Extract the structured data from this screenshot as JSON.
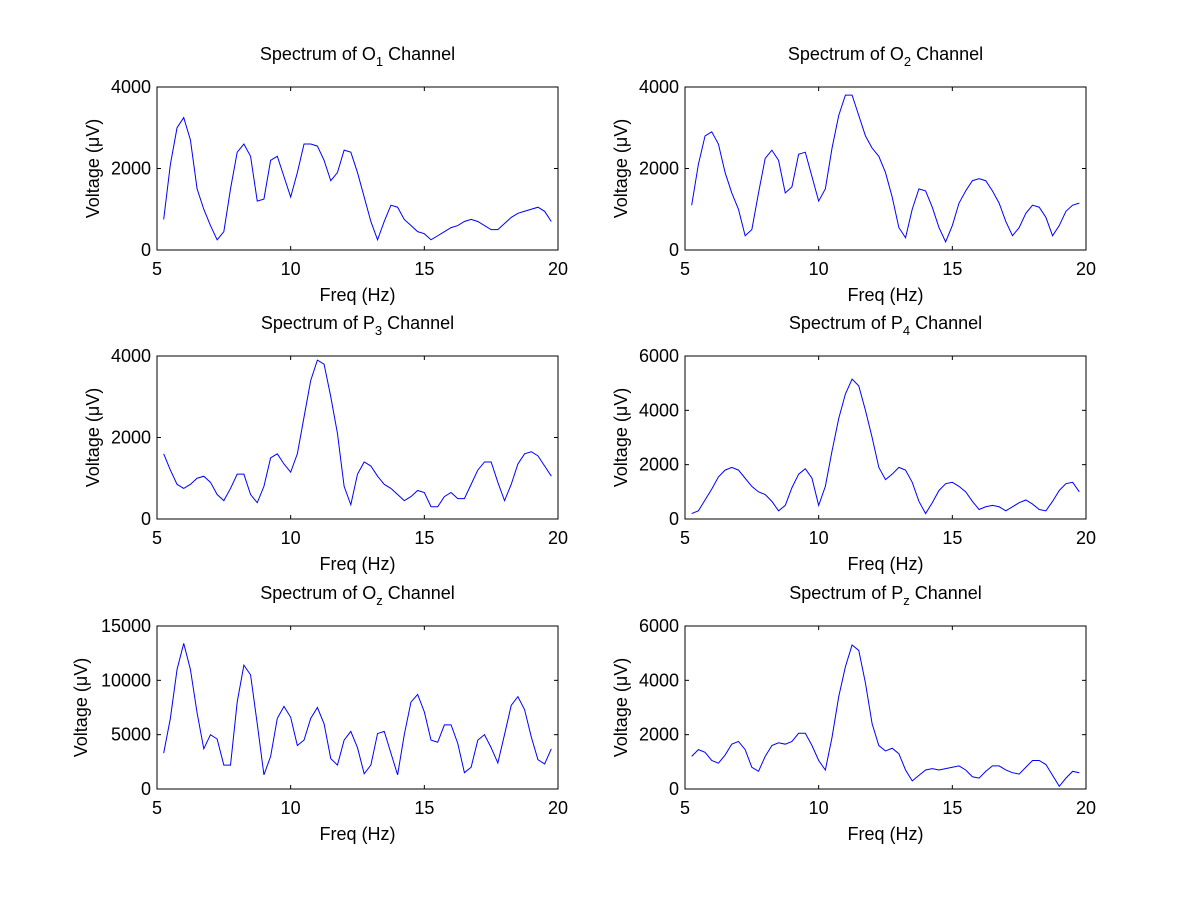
{
  "chart_data": [
    {
      "type": "line",
      "title": {
        "text": "Spectrum of",
        "channel": "O",
        "subscript": "1",
        "suffix": "Channel"
      },
      "xlabel": "Freq (Hz)",
      "ylabel": "Voltage (μV)",
      "color": "#0000ff",
      "xlim": [
        5,
        20
      ],
      "xticks": [
        5,
        10,
        15,
        20
      ],
      "ylim": [
        0,
        4000
      ],
      "yticks": [
        0,
        2000,
        4000
      ],
      "x": [
        5.25,
        5.5,
        5.75,
        6,
        6.25,
        6.5,
        6.75,
        7,
        7.25,
        7.5,
        7.75,
        8,
        8.25,
        8.5,
        8.75,
        9,
        9.25,
        9.5,
        9.75,
        10,
        10.25,
        10.5,
        10.75,
        11,
        11.25,
        11.5,
        11.75,
        12,
        12.25,
        12.5,
        12.75,
        13,
        13.25,
        13.5,
        13.75,
        14,
        14.25,
        14.5,
        14.75,
        15,
        15.25,
        15.5,
        15.75,
        16,
        16.25,
        16.5,
        16.75,
        17,
        17.25,
        17.5,
        17.75,
        18,
        18.25,
        18.5,
        18.75,
        19,
        19.25,
        19.5,
        19.75
      ],
      "values": [
        750,
        2100,
        3000,
        3250,
        2700,
        1500,
        1000,
        600,
        250,
        450,
        1500,
        2400,
        2600,
        2300,
        1200,
        1250,
        2200,
        2300,
        1800,
        1300,
        1900,
        2600,
        2600,
        2550,
        2200,
        1700,
        1900,
        2450,
        2400,
        1900,
        1300,
        700,
        250,
        700,
        1100,
        1050,
        750,
        600,
        450,
        400,
        250,
        350,
        450,
        550,
        600,
        700,
        750,
        700,
        600,
        500,
        500,
        650,
        800,
        900,
        950,
        1000,
        1050,
        950,
        700
      ]
    },
    {
      "type": "line",
      "title": {
        "text": "Spectrum of",
        "channel": "O",
        "subscript": "2",
        "suffix": "Channel"
      },
      "xlabel": "Freq (Hz)",
      "ylabel": "Voltage (μV)",
      "color": "#0000ff",
      "xlim": [
        5,
        20
      ],
      "xticks": [
        5,
        10,
        15,
        20
      ],
      "ylim": [
        0,
        4000
      ],
      "yticks": [
        0,
        2000,
        4000
      ],
      "x": [
        5.25,
        5.5,
        5.75,
        6,
        6.25,
        6.5,
        6.75,
        7,
        7.25,
        7.5,
        7.75,
        8,
        8.25,
        8.5,
        8.75,
        9,
        9.25,
        9.5,
        9.75,
        10,
        10.25,
        10.5,
        10.75,
        11,
        11.25,
        11.5,
        11.75,
        12,
        12.25,
        12.5,
        12.75,
        13,
        13.25,
        13.5,
        13.75,
        14,
        14.25,
        14.5,
        14.75,
        15,
        15.25,
        15.5,
        15.75,
        16,
        16.25,
        16.5,
        16.75,
        17,
        17.25,
        17.5,
        17.75,
        18,
        18.25,
        18.5,
        18.75,
        19,
        19.25,
        19.5,
        19.75
      ],
      "values": [
        1100,
        2100,
        2800,
        2900,
        2600,
        1900,
        1400,
        1000,
        350,
        500,
        1400,
        2250,
        2450,
        2200,
        1400,
        1550,
        2350,
        2400,
        1800,
        1200,
        1500,
        2500,
        3300,
        3800,
        3800,
        3300,
        2800,
        2500,
        2300,
        1900,
        1300,
        550,
        300,
        1000,
        1500,
        1450,
        1050,
        550,
        200,
        600,
        1150,
        1450,
        1700,
        1750,
        1700,
        1450,
        1150,
        700,
        350,
        550,
        900,
        1100,
        1050,
        800,
        350,
        600,
        950,
        1100,
        1150
      ]
    },
    {
      "type": "line",
      "title": {
        "text": "Spectrum of",
        "channel": "P",
        "subscript": "3",
        "suffix": "Channel"
      },
      "xlabel": "Freq (Hz)",
      "ylabel": "Voltage (μV)",
      "color": "#0000ff",
      "xlim": [
        5,
        20
      ],
      "xticks": [
        5,
        10,
        15,
        20
      ],
      "ylim": [
        0,
        4000
      ],
      "yticks": [
        0,
        2000,
        4000
      ],
      "x": [
        5.25,
        5.5,
        5.75,
        6,
        6.25,
        6.5,
        6.75,
        7,
        7.25,
        7.5,
        7.75,
        8,
        8.25,
        8.5,
        8.75,
        9,
        9.25,
        9.5,
        9.75,
        10,
        10.25,
        10.5,
        10.75,
        11,
        11.25,
        11.5,
        11.75,
        12,
        12.25,
        12.5,
        12.75,
        13,
        13.25,
        13.5,
        13.75,
        14,
        14.25,
        14.5,
        14.75,
        15,
        15.25,
        15.5,
        15.75,
        16,
        16.25,
        16.5,
        16.75,
        17,
        17.25,
        17.5,
        17.75,
        18,
        18.25,
        18.5,
        18.75,
        19,
        19.25,
        19.5,
        19.75
      ],
      "values": [
        1600,
        1200,
        850,
        750,
        850,
        1000,
        1050,
        900,
        600,
        450,
        750,
        1100,
        1100,
        600,
        400,
        800,
        1500,
        1600,
        1350,
        1150,
        1600,
        2500,
        3400,
        3900,
        3800,
        3000,
        2100,
        800,
        350,
        1100,
        1400,
        1300,
        1050,
        850,
        750,
        600,
        450,
        550,
        700,
        650,
        300,
        300,
        550,
        650,
        500,
        500,
        850,
        1200,
        1400,
        1400,
        900,
        450,
        850,
        1350,
        1600,
        1650,
        1550,
        1300,
        1050
      ]
    },
    {
      "type": "line",
      "title": {
        "text": "Spectrum of",
        "channel": "P",
        "subscript": "4",
        "suffix": "Channel"
      },
      "xlabel": "Freq (Hz)",
      "ylabel": "Voltage (μV)",
      "color": "#0000ff",
      "xlim": [
        5,
        20
      ],
      "xticks": [
        5,
        10,
        15,
        20
      ],
      "ylim": [
        0,
        6000
      ],
      "yticks": [
        0,
        2000,
        4000,
        6000
      ],
      "x": [
        5.25,
        5.5,
        5.75,
        6,
        6.25,
        6.5,
        6.75,
        7,
        7.25,
        7.5,
        7.75,
        8,
        8.25,
        8.5,
        8.75,
        9,
        9.25,
        9.5,
        9.75,
        10,
        10.25,
        10.5,
        10.75,
        11,
        11.25,
        11.5,
        11.75,
        12,
        12.25,
        12.5,
        12.75,
        13,
        13.25,
        13.5,
        13.75,
        14,
        14.25,
        14.5,
        14.75,
        15,
        15.25,
        15.5,
        15.75,
        16,
        16.25,
        16.5,
        16.75,
        17,
        17.25,
        17.5,
        17.75,
        18,
        18.25,
        18.5,
        18.75,
        19,
        19.25,
        19.5,
        19.75
      ],
      "values": [
        200,
        300,
        700,
        1100,
        1550,
        1800,
        1900,
        1800,
        1500,
        1200,
        1000,
        900,
        650,
        300,
        500,
        1150,
        1650,
        1850,
        1500,
        500,
        1200,
        2500,
        3700,
        4600,
        5150,
        4900,
        4000,
        3000,
        1900,
        1450,
        1650,
        1900,
        1800,
        1350,
        650,
        200,
        600,
        1050,
        1300,
        1350,
        1200,
        1000,
        650,
        350,
        450,
        500,
        450,
        300,
        450,
        600,
        700,
        550,
        350,
        300,
        650,
        1050,
        1300,
        1350,
        1000
      ]
    },
    {
      "type": "line",
      "title": {
        "text": "Spectrum of",
        "channel": "O",
        "subscript": "z",
        "suffix": "Channel"
      },
      "xlabel": "Freq (Hz)",
      "ylabel": "Voltage (μV)",
      "color": "#0000ff",
      "xlim": [
        5,
        20
      ],
      "xticks": [
        5,
        10,
        15,
        20
      ],
      "ylim": [
        0,
        15000
      ],
      "yticks": [
        0,
        5000,
        10000,
        15000
      ],
      "x": [
        5.25,
        5.5,
        5.75,
        6,
        6.25,
        6.5,
        6.75,
        7,
        7.25,
        7.5,
        7.75,
        8,
        8.25,
        8.5,
        8.75,
        9,
        9.25,
        9.5,
        9.75,
        10,
        10.25,
        10.5,
        10.75,
        11,
        11.25,
        11.5,
        11.75,
        12,
        12.25,
        12.5,
        12.75,
        13,
        13.25,
        13.5,
        13.75,
        14,
        14.25,
        14.5,
        14.75,
        15,
        15.25,
        15.5,
        15.75,
        16,
        16.25,
        16.5,
        16.75,
        17,
        17.25,
        17.5,
        17.75,
        18,
        18.25,
        18.5,
        18.75,
        19,
        19.25,
        19.5,
        19.75
      ],
      "values": [
        3300,
        6500,
        11000,
        13400,
        11000,
        7000,
        3700,
        5000,
        4600,
        2200,
        2200,
        8000,
        11400,
        10500,
        6000,
        1300,
        3000,
        6500,
        7600,
        6600,
        4000,
        4500,
        6500,
        7500,
        6000,
        2800,
        2200,
        4500,
        5300,
        3800,
        1400,
        2200,
        5100,
        5300,
        3300,
        1300,
        5000,
        8000,
        8700,
        7100,
        4500,
        4300,
        5900,
        5900,
        4200,
        1500,
        2000,
        4500,
        5000,
        3800,
        2400,
        5000,
        7700,
        8500,
        7300,
        4800,
        2700,
        2300,
        3700
      ]
    },
    {
      "type": "line",
      "title": {
        "text": "Spectrum of",
        "channel": "P",
        "subscript": "z",
        "suffix": "Channel"
      },
      "xlabel": "Freq (Hz)",
      "ylabel": "Voltage (μV)",
      "color": "#0000ff",
      "xlim": [
        5,
        20
      ],
      "xticks": [
        5,
        10,
        15,
        20
      ],
      "ylim": [
        0,
        6000
      ],
      "yticks": [
        0,
        2000,
        4000,
        6000
      ],
      "x": [
        5.25,
        5.5,
        5.75,
        6,
        6.25,
        6.5,
        6.75,
        7,
        7.25,
        7.5,
        7.75,
        8,
        8.25,
        8.5,
        8.75,
        9,
        9.25,
        9.5,
        9.75,
        10,
        10.25,
        10.5,
        10.75,
        11,
        11.25,
        11.5,
        11.75,
        12,
        12.25,
        12.5,
        12.75,
        13,
        13.25,
        13.5,
        13.75,
        14,
        14.25,
        14.5,
        14.75,
        15,
        15.25,
        15.5,
        15.75,
        16,
        16.25,
        16.5,
        16.75,
        17,
        17.25,
        17.5,
        17.75,
        18,
        18.25,
        18.5,
        18.75,
        19,
        19.25,
        19.5,
        19.75
      ],
      "values": [
        1200,
        1450,
        1350,
        1050,
        950,
        1250,
        1650,
        1750,
        1450,
        800,
        650,
        1200,
        1600,
        1700,
        1650,
        1750,
        2050,
        2050,
        1600,
        1050,
        700,
        1900,
        3400,
        4500,
        5300,
        5100,
        3900,
        2400,
        1600,
        1400,
        1500,
        1300,
        700,
        300,
        500,
        700,
        750,
        700,
        750,
        800,
        850,
        700,
        450,
        400,
        650,
        850,
        850,
        700,
        600,
        550,
        800,
        1050,
        1050,
        900,
        500,
        100,
        400,
        650,
        600
      ]
    }
  ]
}
